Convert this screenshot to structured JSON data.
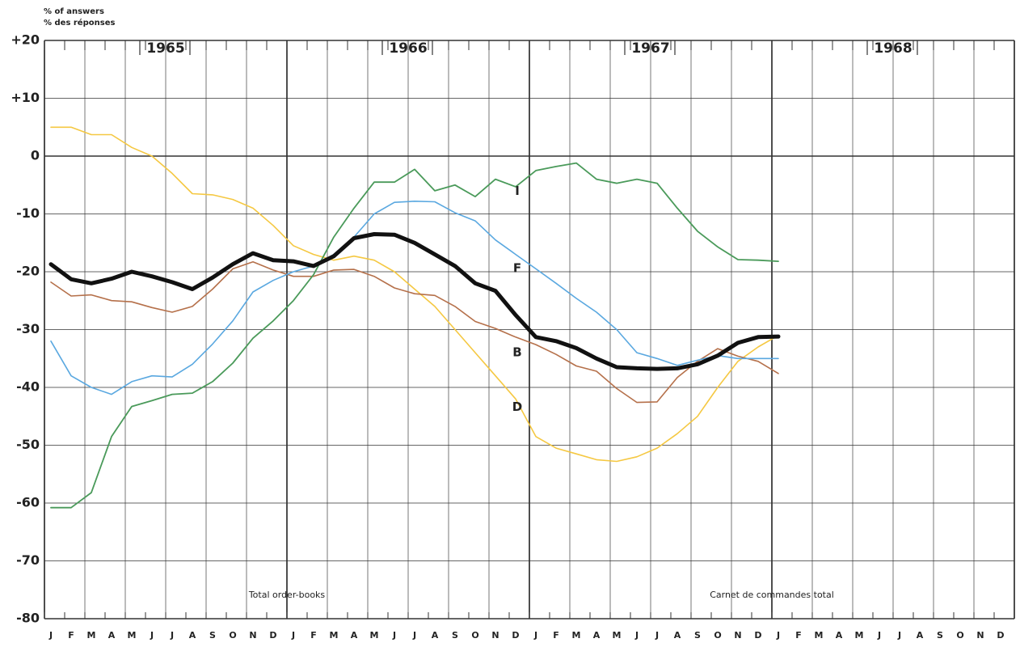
{
  "chart_data": {
    "type": "line",
    "y_label_lines": [
      "% of answers",
      "% des réponses"
    ],
    "categories": [
      "J",
      "F",
      "M",
      "A",
      "M",
      "J",
      "J",
      "A",
      "S",
      "O",
      "N",
      "D",
      "J",
      "F",
      "M",
      "A",
      "M",
      "J",
      "J",
      "A",
      "S",
      "O",
      "N",
      "D",
      "J",
      "F",
      "M",
      "A",
      "M",
      "J",
      "J",
      "A",
      "S",
      "O",
      "N",
      "D",
      "J",
      "F",
      "M",
      "A",
      "M",
      "J",
      "J",
      "A",
      "S",
      "O",
      "N",
      "D"
    ],
    "year_labels": [
      "1965",
      "1966",
      "1967",
      "1968"
    ],
    "annotations": [
      "Total order-books",
      "Carnet de commandes total"
    ],
    "ylim": [
      -80,
      20
    ],
    "yticks": [
      {
        "value": 20,
        "label": "+20"
      },
      {
        "value": 10,
        "label": "+10"
      },
      0,
      -10,
      -20,
      -30,
      -40,
      -50,
      -60,
      -70,
      -80
    ],
    "grid": true,
    "series": [
      {
        "name": "D",
        "color": "#f5c842",
        "width": 1.6,
        "values": [
          5,
          5,
          3.7,
          3.7,
          1.5,
          0,
          -3,
          -6.5,
          -6.7,
          -7.5,
          -9,
          -12,
          -15.5,
          -17,
          -18,
          -17.3,
          -18,
          -20,
          -23,
          -26,
          -30,
          -34,
          -38,
          -42,
          -48.5,
          -50.5,
          -51.5,
          -52.5,
          -52.8,
          -52,
          -50.5,
          -48,
          -45,
          -40,
          -35.5,
          -33,
          -31,
          null,
          null,
          null,
          null,
          null,
          null,
          null,
          null,
          null,
          null,
          null
        ]
      },
      {
        "name": "B",
        "color": "#b5704a",
        "width": 1.6,
        "values": [
          -21.8,
          -24.2,
          -24,
          -25,
          -25.2,
          -26.2,
          -27,
          -26,
          -23,
          -19.5,
          -18.3,
          -19.7,
          -20.8,
          -20.8,
          -19.7,
          -19.6,
          -20.8,
          -22.8,
          -23.8,
          -24.1,
          -26,
          -28.6,
          -29.8,
          -31.3,
          -32.6,
          -34.3,
          -36.3,
          -37.2,
          -40.2,
          -42.6,
          -42.5,
          -38.3,
          -35.5,
          -33.3,
          -34.6,
          -35.5,
          -37.6,
          null,
          null,
          null,
          null,
          null,
          null,
          null,
          null,
          null,
          null,
          null
        ]
      },
      {
        "name": "F",
        "color": "#5aa8e0",
        "width": 1.6,
        "values": [
          -32,
          -38,
          -40,
          -41.2,
          -39,
          -38,
          -38.2,
          -36,
          -32.5,
          -28.5,
          -23.5,
          -21.5,
          -20,
          -19,
          -17,
          -14,
          -10,
          -8,
          -7.8,
          -7.9,
          -9.8,
          -11.2,
          -14.5,
          -17,
          -19.5,
          -22,
          -24.6,
          -27,
          -30,
          -34,
          -35,
          -36.2,
          -35.3,
          -34.5,
          -35,
          -35,
          -35,
          null,
          null,
          null,
          null,
          null,
          null,
          null,
          null,
          null,
          null,
          null
        ]
      },
      {
        "name": "I",
        "color": "#4a9a5a",
        "width": 1.8,
        "values": [
          -60.8,
          -60.8,
          -58.2,
          -48.5,
          -43.3,
          -42.3,
          -41.2,
          -41,
          -39,
          -35.8,
          -31.5,
          -28.5,
          -25,
          -20.5,
          -14,
          -9,
          -4.5,
          -4.5,
          -2.3,
          -6,
          -5,
          -7,
          -4,
          -5.3,
          -2.5,
          -1.8,
          -1.2,
          -4,
          -4.7,
          -4,
          -4.7,
          -9,
          -13,
          -15.7,
          -17.9,
          -18,
          -18.2,
          null,
          null,
          null,
          null,
          null,
          null,
          null,
          null,
          null,
          null,
          null
        ]
      },
      {
        "name": "Total",
        "color": "#111111",
        "width": 5,
        "values": [
          -18.7,
          -21.3,
          -22,
          -21.2,
          -20,
          -20.8,
          -21.8,
          -23,
          -21,
          -18.7,
          -16.8,
          -18,
          -18.2,
          -19,
          -17.3,
          -14.2,
          -13.5,
          -13.6,
          -15,
          -17,
          -19,
          -22,
          -23.3,
          -27.5,
          -31.3,
          -32,
          -33.2,
          -35,
          -36.5,
          -36.7,
          -36.8,
          -36.7,
          -36,
          -34.5,
          -32.3,
          -31.3,
          -31.2,
          null,
          null,
          null,
          null,
          null,
          null,
          null,
          null,
          null,
          null,
          null
        ]
      }
    ]
  }
}
